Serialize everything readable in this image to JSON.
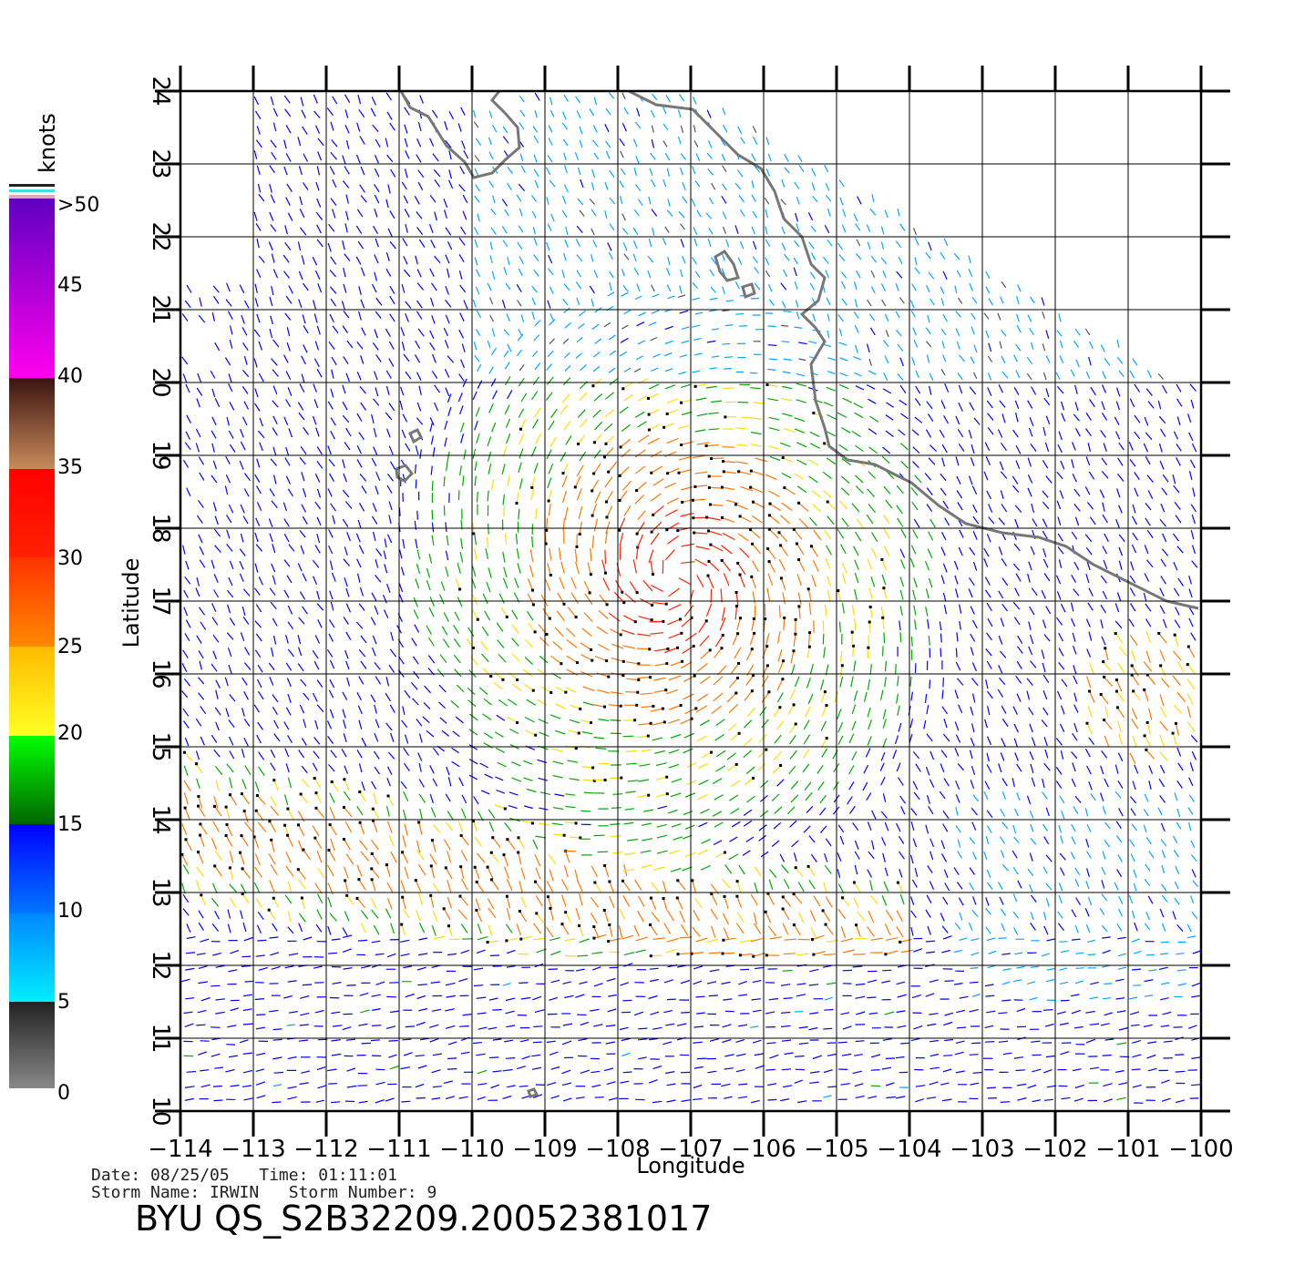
{
  "map": {
    "x_label": "Longitude",
    "y_label": "Latitude",
    "lon_ticks": [
      "−114",
      "−113",
      "−112",
      "−111",
      "−110",
      "−109",
      "−108",
      "−107",
      "−106",
      "−105",
      "−104",
      "−103",
      "−102",
      "−101",
      "−100"
    ],
    "lat_ticks": [
      "10",
      "11",
      "12",
      "13",
      "14",
      "15",
      "16",
      "17",
      "18",
      "19",
      "20",
      "21",
      "22",
      "23",
      "24"
    ],
    "lon_range": [
      -114,
      -100
    ],
    "lat_range": [
      10,
      24
    ]
  },
  "legend": {
    "unit": "knots",
    "labels": [
      ">50",
      "45",
      "40",
      "35",
      "30",
      "25",
      "20",
      "15",
      "10",
      "5",
      "0"
    ],
    "colors": {
      "0-5": "#555555",
      "5-10": "#00a8ff",
      "10-15": "#0000ff",
      "15-20": "#00aa00",
      "20-25": "#ffdd00",
      "25-30": "#ff7700",
      "30-35": "#ff2200",
      "35-40": "#8b4a2b",
      "40-45": "#ff00ff",
      ">50": "#6a00c8"
    }
  },
  "meta": {
    "date_line": "Date: 08/25/05   Time: 01:11:01",
    "storm_line": "Storm Name: IRWIN   Storm Number: 9",
    "title": "BYU QS_S2B32209.20052381017"
  },
  "chart_data": {
    "type": "wind-vector-map",
    "lon_range": [
      -114,
      -100
    ],
    "lat_range": [
      10,
      24
    ],
    "unit": "knots",
    "color_scale_max": 50
  }
}
